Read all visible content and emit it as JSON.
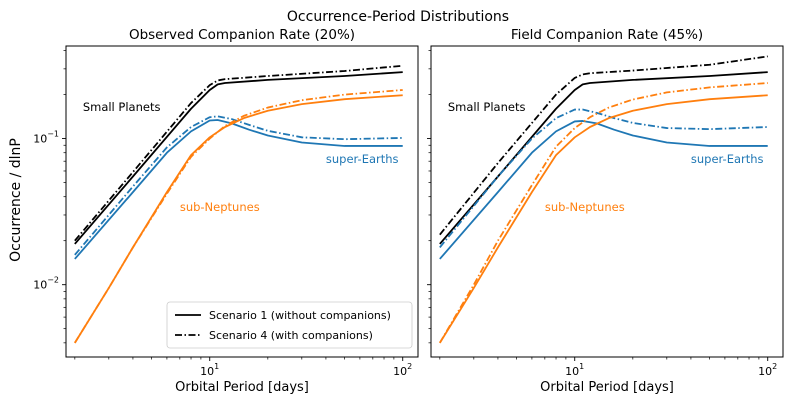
{
  "figure": {
    "suptitle": "Occurrence-Period Distributions",
    "ylabel": "Occurrence / dlnP"
  },
  "colors": {
    "small_planets": "#000000",
    "super_earths": "#1f77b4",
    "sub_neptunes": "#ff7f0e",
    "axes": "#000000",
    "background": "#ffffff"
  },
  "legend": {
    "placement": "lower-right of first panel",
    "entries": [
      {
        "label": "Scenario 1 (without companions)",
        "style": "solid"
      },
      {
        "label": "Scenario 4 (with companions)",
        "style": "dashdot"
      }
    ]
  },
  "chart_data": [
    {
      "type": "line",
      "title": "Observed Companion Rate (20%)",
      "xlabel": "Orbital Period [days]",
      "ylabel": "Occurrence / dlnP",
      "xscale": "log",
      "yscale": "log",
      "xlim": [
        1.8,
        120
      ],
      "ylim": [
        0.0032,
        0.43
      ],
      "x_ticks": [
        {
          "value": 10,
          "label": "10^1"
        },
        {
          "value": 100,
          "label": "10^2"
        }
      ],
      "y_ticks": [
        {
          "value": 0.01,
          "label": "10^-2"
        },
        {
          "value": 0.1,
          "label": "10^-1"
        }
      ],
      "annotations": [
        {
          "text": "Small Planets",
          "color_key": "small_planets",
          "x": 2.2,
          "y": 0.155
        },
        {
          "text": "super-Earths",
          "color_key": "super_earths",
          "x": 40,
          "y": 0.068
        },
        {
          "text": "sub-Neptunes",
          "color_key": "sub_neptunes",
          "x": 7,
          "y": 0.032
        }
      ],
      "series": [
        {
          "group": "small_planets",
          "style": "solid",
          "x": [
            2,
            4,
            8,
            10,
            11,
            12,
            20,
            50,
            100
          ],
          "y": [
            0.019,
            0.055,
            0.16,
            0.215,
            0.235,
            0.24,
            0.252,
            0.268,
            0.285
          ]
        },
        {
          "group": "small_planets",
          "style": "dashdot",
          "x": [
            2,
            4,
            8,
            10,
            11,
            12,
            20,
            50,
            100
          ],
          "y": [
            0.02,
            0.059,
            0.175,
            0.232,
            0.25,
            0.255,
            0.268,
            0.29,
            0.315
          ]
        },
        {
          "group": "super_earths",
          "style": "solid",
          "x": [
            2,
            4,
            6,
            8,
            10,
            11,
            13,
            16,
            20,
            30,
            50,
            100
          ],
          "y": [
            0.015,
            0.043,
            0.08,
            0.112,
            0.133,
            0.134,
            0.127,
            0.115,
            0.105,
            0.094,
            0.089,
            0.089
          ]
        },
        {
          "group": "super_earths",
          "style": "dashdot",
          "x": [
            2,
            4,
            6,
            8,
            10,
            11,
            13,
            16,
            20,
            30,
            50,
            100
          ],
          "y": [
            0.016,
            0.047,
            0.087,
            0.12,
            0.14,
            0.142,
            0.136,
            0.124,
            0.113,
            0.102,
            0.099,
            0.101
          ]
        },
        {
          "group": "sub_neptunes",
          "style": "solid",
          "x": [
            2,
            3,
            4,
            6,
            8,
            10,
            12,
            15,
            20,
            30,
            50,
            100
          ],
          "y": [
            0.004,
            0.0095,
            0.018,
            0.043,
            0.077,
            0.102,
            0.12,
            0.138,
            0.155,
            0.172,
            0.186,
            0.198
          ]
        },
        {
          "group": "sub_neptunes",
          "style": "dashdot",
          "x": [
            2,
            3,
            4,
            6,
            8,
            10,
            12,
            15,
            20,
            30,
            50,
            100
          ],
          "y": [
            0.004,
            0.0095,
            0.018,
            0.042,
            0.075,
            0.1,
            0.122,
            0.143,
            0.163,
            0.183,
            0.2,
            0.215
          ]
        }
      ]
    },
    {
      "type": "line",
      "title": "Field Companion Rate (45%)",
      "xlabel": "Orbital Period [days]",
      "ylabel": "",
      "xscale": "log",
      "yscale": "log",
      "xlim": [
        1.8,
        120
      ],
      "ylim": [
        0.0032,
        0.43
      ],
      "x_ticks": [
        {
          "value": 10,
          "label": "10^1"
        },
        {
          "value": 100,
          "label": "10^2"
        }
      ],
      "y_ticks": [
        {
          "value": 0.01,
          "label": ""
        },
        {
          "value": 0.1,
          "label": ""
        }
      ],
      "annotations": [
        {
          "text": "Small Planets",
          "color_key": "small_planets",
          "x": 2.2,
          "y": 0.155
        },
        {
          "text": "super-Earths",
          "color_key": "super_earths",
          "x": 40,
          "y": 0.068
        },
        {
          "text": "sub-Neptunes",
          "color_key": "sub_neptunes",
          "x": 7,
          "y": 0.032
        }
      ],
      "series": [
        {
          "group": "small_planets",
          "style": "solid",
          "x": [
            2,
            4,
            8,
            10,
            11,
            12,
            20,
            50,
            100
          ],
          "y": [
            0.019,
            0.055,
            0.16,
            0.215,
            0.235,
            0.24,
            0.252,
            0.268,
            0.285
          ]
        },
        {
          "group": "small_planets",
          "style": "dashdot",
          "x": [
            2,
            4,
            8,
            10,
            11,
            12,
            20,
            50,
            100
          ],
          "y": [
            0.022,
            0.068,
            0.2,
            0.26,
            0.275,
            0.28,
            0.292,
            0.32,
            0.365
          ]
        },
        {
          "group": "super_earths",
          "style": "solid",
          "x": [
            2,
            4,
            6,
            8,
            10,
            11,
            13,
            16,
            20,
            30,
            50,
            100
          ],
          "y": [
            0.015,
            0.043,
            0.08,
            0.112,
            0.131,
            0.132,
            0.127,
            0.115,
            0.105,
            0.094,
            0.089,
            0.089
          ]
        },
        {
          "group": "super_earths",
          "style": "dashdot",
          "x": [
            2,
            4,
            6,
            8,
            10,
            11,
            13,
            16,
            20,
            30,
            50,
            100
          ],
          "y": [
            0.018,
            0.055,
            0.1,
            0.138,
            0.158,
            0.158,
            0.15,
            0.138,
            0.128,
            0.118,
            0.116,
            0.12
          ]
        },
        {
          "group": "sub_neptunes",
          "style": "solid",
          "x": [
            2,
            3,
            4,
            6,
            8,
            10,
            12,
            15,
            20,
            30,
            50,
            100
          ],
          "y": [
            0.004,
            0.0095,
            0.018,
            0.043,
            0.077,
            0.102,
            0.12,
            0.138,
            0.155,
            0.172,
            0.186,
            0.198
          ]
        },
        {
          "group": "sub_neptunes",
          "style": "dashdot",
          "x": [
            2,
            3,
            4,
            6,
            8,
            10,
            12,
            15,
            20,
            30,
            50,
            100
          ],
          "y": [
            0.004,
            0.01,
            0.02,
            0.048,
            0.088,
            0.118,
            0.14,
            0.163,
            0.185,
            0.207,
            0.224,
            0.24
          ]
        }
      ]
    }
  ]
}
